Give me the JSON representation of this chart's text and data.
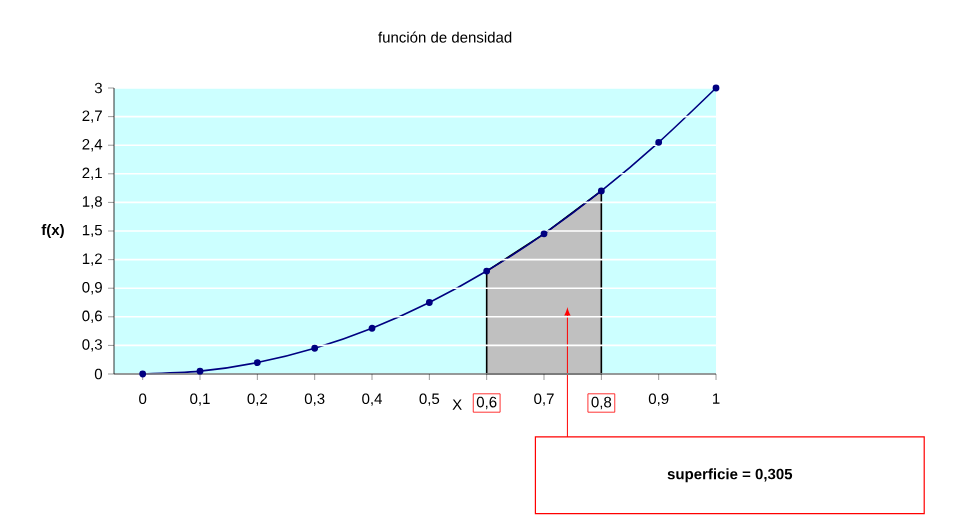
{
  "chart_data": {
    "type": "line",
    "title": "función de densidad",
    "xlabel": "X",
    "ylabel": "f(x)",
    "x": [
      0,
      0.1,
      0.2,
      0.3,
      0.4,
      0.5,
      0.6,
      0.7,
      0.8,
      0.9,
      1
    ],
    "series": [
      {
        "color": "#000080",
        "marker": "circle",
        "values": [
          0,
          0.03,
          0.12,
          0.27,
          0.48,
          0.75,
          1.08,
          1.47,
          1.92,
          2.43,
          3
        ]
      },
      {
        "type": "area",
        "color": "#c0c0c0",
        "x": [
          0.6,
          0.7,
          0.8
        ],
        "values": [
          1.08,
          1.47,
          1.92
        ]
      }
    ],
    "xlim": [
      -0.05,
      1
    ],
    "xticks": [
      0,
      {
        "value": 0.1,
        "label": "0,1"
      },
      {
        "value": 0.2,
        "label": "0,2"
      },
      {
        "value": 0.3,
        "label": "0,3"
      },
      {
        "value": 0.4,
        "label": "0,4"
      },
      {
        "value": 0.5,
        "label": "0,5"
      },
      {
        "value": 0.6,
        "label": "0,6"
      },
      {
        "value": 0.7,
        "label": "0,7"
      },
      {
        "value": 0.8,
        "label": "0,8"
      },
      {
        "value": 0.9,
        "label": "0,9"
      },
      1
    ],
    "ylim": [
      0,
      3
    ],
    "yticks": [
      0,
      {
        "value": 0.3,
        "label": "0,3"
      },
      {
        "value": 0.6,
        "label": "0,6"
      },
      {
        "value": 0.9,
        "label": "0,9"
      },
      {
        "value": 1.2,
        "label": "1,2"
      },
      {
        "value": 1.5,
        "label": "1,5"
      },
      {
        "value": 1.8,
        "label": "1,8"
      },
      {
        "value": 2.1,
        "label": "2,1"
      },
      {
        "value": 2.4,
        "label": "2,4"
      },
      {
        "value": 2.7,
        "label": "2,7"
      },
      3
    ],
    "grid": "y",
    "annotations": [
      "superficie = 0,305"
    ]
  }
}
